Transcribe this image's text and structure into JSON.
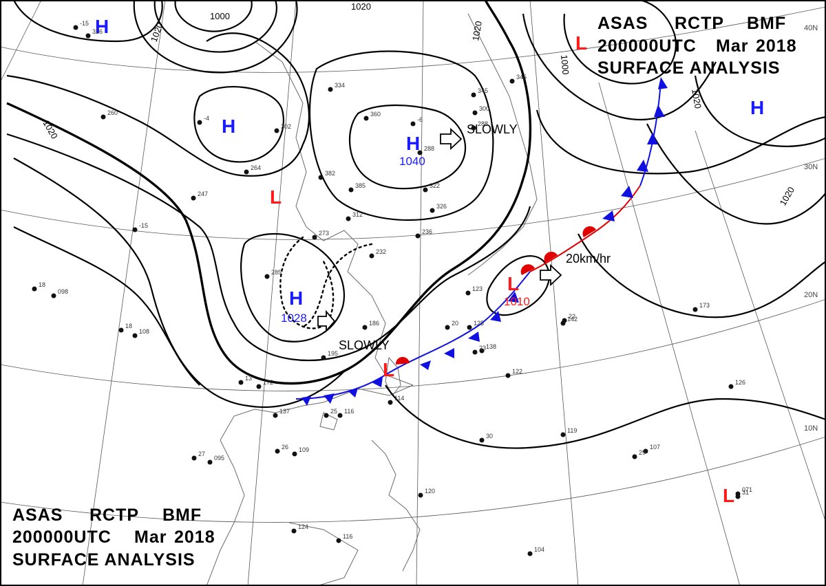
{
  "title_block_top": {
    "line1": {
      "a": "ASAS",
      "b": "RCTP",
      "c": "BMF"
    },
    "line2": {
      "a": "200000UTC",
      "b": "Mar",
      "c": "2018"
    },
    "line3": "SURFACE ANALYSIS"
  },
  "title_block_bottom": {
    "line1": {
      "a": "ASAS",
      "b": "RCTP",
      "c": "BMF"
    },
    "line2": {
      "a": "200000UTC",
      "b": "Mar",
      "c": "2018"
    },
    "line3": "SURFACE ANALYSIS"
  },
  "latitude_labels": [
    "40N",
    "30N",
    "20N",
    "10N"
  ],
  "isobar_labels": [
    "1000",
    "1020",
    "1020",
    "1020",
    "1020",
    "1000",
    "1020",
    "1020"
  ],
  "pressure_centers": [
    {
      "type": "H",
      "value": ""
    },
    {
      "type": "H",
      "value": ""
    },
    {
      "type": "H",
      "value": "1040"
    },
    {
      "type": "H",
      "value": ""
    },
    {
      "type": "L",
      "value": ""
    },
    {
      "type": "H",
      "value": "1028"
    },
    {
      "type": "L",
      "value": ""
    },
    {
      "type": "L",
      "value": "1010"
    },
    {
      "type": "L",
      "value": ""
    },
    {
      "type": "L",
      "value": ""
    }
  ],
  "motion_labels": [
    "SLOWLY",
    "SLOWLY",
    "20km/hr"
  ],
  "station_observations": [
    "-15",
    "326",
    "264",
    "260",
    "-4",
    "302",
    "334",
    "345",
    "360",
    "288",
    "300",
    "-6",
    "288",
    "382",
    "385",
    "322",
    "326",
    "312",
    "236",
    "247",
    "-15",
    "273",
    "232",
    "285",
    "345",
    "18",
    "098",
    "18",
    "108",
    "13",
    "172",
    "137",
    "27",
    "095",
    "25",
    "116",
    "26",
    "109",
    "195",
    "186",
    "123",
    "125",
    "138",
    "122",
    "142",
    "173",
    "126",
    "119",
    "107",
    "071",
    "104",
    "124",
    "116",
    "114",
    "120",
    "20",
    "22",
    "23",
    "29",
    "30",
    "31"
  ],
  "colors": {
    "high": "#1a1aff",
    "low": "#ff1a1a",
    "cold_front": "#1010e0",
    "warm_front": "#e00000",
    "isobar": "#000000"
  }
}
